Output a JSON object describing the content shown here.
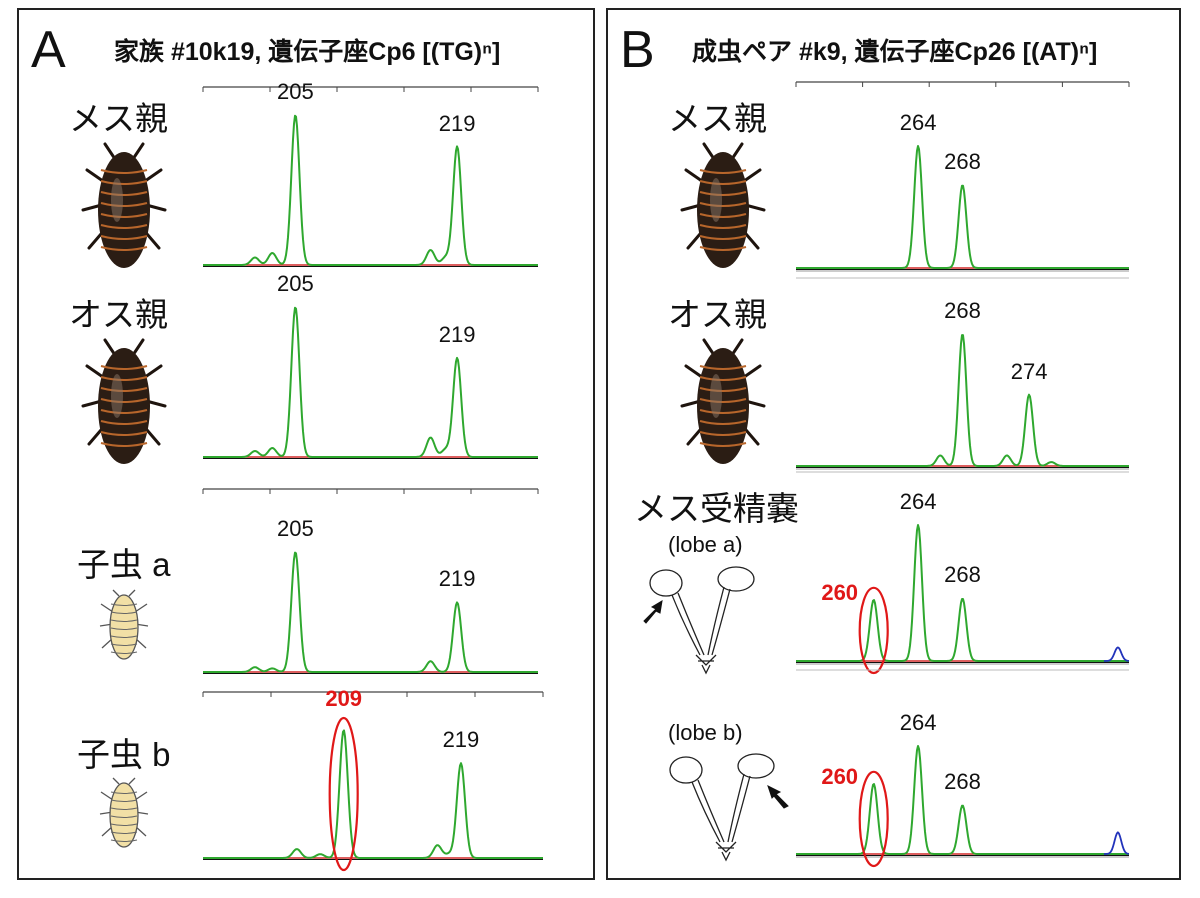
{
  "colors": {
    "trace": "#2fa82f",
    "baseline_red": "#d22a2a",
    "baseline_black": "#111111",
    "baseline_blue": "#2233bb",
    "highlight": "#e01818",
    "cockroach_body": "#2b1d14",
    "cockroach_stripe": "#b8662b",
    "nymph_body": "#f2e0a6"
  },
  "panels": [
    {
      "letter": "A",
      "title": "家族 #10k19, 遺伝子座Cp6 [(TG)ⁿ]",
      "rows": [
        {
          "label": "メス親",
          "sublabel": "",
          "illustration": "adult-cockroach-icon"
        },
        {
          "label": "オス親",
          "sublabel": "",
          "illustration": "adult-cockroach-icon"
        },
        {
          "label": "子虫 a",
          "sublabel": "",
          "illustration": "nymph-icon"
        },
        {
          "label": "子虫 b",
          "sublabel": "",
          "illustration": "nymph-icon"
        }
      ]
    },
    {
      "letter": "B",
      "title": "成虫ペア #k9, 遺伝子座Cp26 [(AT)ⁿ]",
      "rows": [
        {
          "label": "メス親",
          "sublabel": "",
          "illustration": "adult-cockroach-icon"
        },
        {
          "label": "オス親",
          "sublabel": "",
          "illustration": "adult-cockroach-icon"
        },
        {
          "label": "メス受精嚢",
          "sublabel": "(lobe a)",
          "illustration": "spermatheca-lobe-a-icon"
        },
        {
          "label": "",
          "sublabel": "(lobe b)",
          "illustration": "spermatheca-lobe-b-icon"
        }
      ]
    }
  ],
  "chart_data": [
    {
      "type": "line",
      "panel": "A",
      "row": "メス親",
      "x_unit": "bp",
      "x_range": [
        197,
        226
      ],
      "peaks": [
        {
          "x": 205,
          "height": 1.0,
          "label": "205"
        },
        {
          "x": 219,
          "height": 0.79,
          "label": "219"
        }
      ],
      "minor_peaks": [
        {
          "x": 201.5,
          "height": 0.05
        },
        {
          "x": 203,
          "height": 0.08
        },
        {
          "x": 216.7,
          "height": 0.1
        },
        {
          "x": 218,
          "height": 0.05
        }
      ],
      "highlighted": []
    },
    {
      "type": "line",
      "panel": "A",
      "row": "オス親",
      "x_unit": "bp",
      "x_range": [
        197,
        226
      ],
      "peaks": [
        {
          "x": 205,
          "height": 1.0,
          "label": "205"
        },
        {
          "x": 219,
          "height": 0.66,
          "label": "219"
        }
      ],
      "minor_peaks": [
        {
          "x": 201.5,
          "height": 0.04
        },
        {
          "x": 203,
          "height": 0.06
        },
        {
          "x": 216.7,
          "height": 0.13
        },
        {
          "x": 218,
          "height": 0.05
        }
      ],
      "highlighted": []
    },
    {
      "type": "line",
      "panel": "A",
      "row": "子虫 a",
      "x_unit": "bp",
      "x_range": [
        197,
        226
      ],
      "peaks": [
        {
          "x": 205,
          "height": 1.0,
          "label": "205"
        },
        {
          "x": 219,
          "height": 0.58,
          "label": "219"
        }
      ],
      "minor_peaks": [
        {
          "x": 201.5,
          "height": 0.04
        },
        {
          "x": 203,
          "height": 0.03
        },
        {
          "x": 216.7,
          "height": 0.09
        }
      ],
      "highlighted": []
    },
    {
      "type": "line",
      "panel": "A",
      "row": "子虫 b",
      "x_unit": "bp",
      "x_range": [
        197,
        226
      ],
      "peaks": [
        {
          "x": 209,
          "height": 1.0,
          "label": "209"
        },
        {
          "x": 219,
          "height": 0.74,
          "label": "219"
        }
      ],
      "minor_peaks": [
        {
          "x": 205,
          "height": 0.07
        },
        {
          "x": 207,
          "height": 0.03
        },
        {
          "x": 217,
          "height": 0.1
        },
        {
          "x": 218,
          "height": 0.03
        }
      ],
      "highlighted": [
        "209"
      ]
    },
    {
      "type": "line",
      "panel": "B",
      "row": "メス親",
      "x_unit": "bp",
      "x_range": [
        253,
        283
      ],
      "peaks": [
        {
          "x": 264,
          "height": 1.0,
          "label": "264"
        },
        {
          "x": 268,
          "height": 0.68,
          "label": "268"
        }
      ],
      "minor_peaks": [],
      "highlighted": []
    },
    {
      "type": "line",
      "panel": "B",
      "row": "オス親",
      "x_unit": "bp",
      "x_range": [
        253,
        283
      ],
      "peaks": [
        {
          "x": 268,
          "height": 1.0,
          "label": "268"
        },
        {
          "x": 274,
          "height": 0.54,
          "label": "274"
        }
      ],
      "minor_peaks": [
        {
          "x": 266,
          "height": 0.08
        },
        {
          "x": 272,
          "height": 0.08
        },
        {
          "x": 276,
          "height": 0.03
        }
      ],
      "highlighted": []
    },
    {
      "type": "line",
      "panel": "B",
      "row": "メス受精嚢 (lobe a)",
      "x_unit": "bp",
      "x_range": [
        253,
        283
      ],
      "peaks": [
        {
          "x": 260,
          "height": 0.45,
          "label": "260"
        },
        {
          "x": 264,
          "height": 1.0,
          "label": "264"
        },
        {
          "x": 268,
          "height": 0.46,
          "label": "268"
        }
      ],
      "minor_peaks": [
        {
          "x": 282,
          "height": 0.1,
          "color": "blue"
        }
      ],
      "highlighted": [
        "260"
      ]
    },
    {
      "type": "line",
      "panel": "B",
      "row": "(lobe b)",
      "x_unit": "bp",
      "x_range": [
        253,
        283
      ],
      "peaks": [
        {
          "x": 260,
          "height": 0.65,
          "label": "260"
        },
        {
          "x": 264,
          "height": 1.0,
          "label": "264"
        },
        {
          "x": 268,
          "height": 0.45,
          "label": "268"
        }
      ],
      "minor_peaks": [
        {
          "x": 282,
          "height": 0.2,
          "color": "blue"
        }
      ],
      "highlighted": [
        "260"
      ]
    }
  ]
}
